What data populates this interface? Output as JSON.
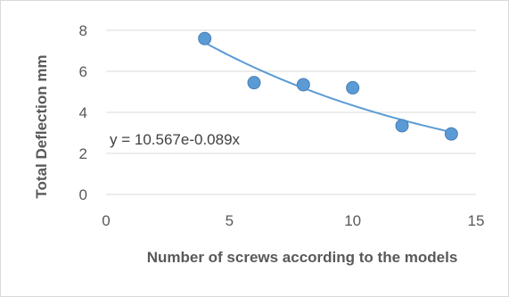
{
  "chart_data": {
    "type": "scatter",
    "xlabel": "Number of screws according to the models",
    "ylabel": "Total Deflection mm",
    "xlim": [
      0,
      15
    ],
    "ylim": [
      0,
      8
    ],
    "x_ticks": [
      "0",
      "5",
      "10",
      "15"
    ],
    "y_ticks": [
      "0",
      "2",
      "4",
      "6",
      "8"
    ],
    "grid": "horizontal",
    "series": [
      {
        "x": [
          4,
          6,
          8,
          10,
          12,
          14
        ],
        "y": [
          7.6,
          5.45,
          5.35,
          5.2,
          3.35,
          2.95
        ],
        "color": "#5B9BD5"
      }
    ],
    "trendline": {
      "type": "exponential",
      "a": 10.567,
      "b": -0.089,
      "x_range": [
        4,
        14
      ],
      "color": "#5B9BD5",
      "equation_label": "y = 10.567e-0.089x"
    }
  }
}
